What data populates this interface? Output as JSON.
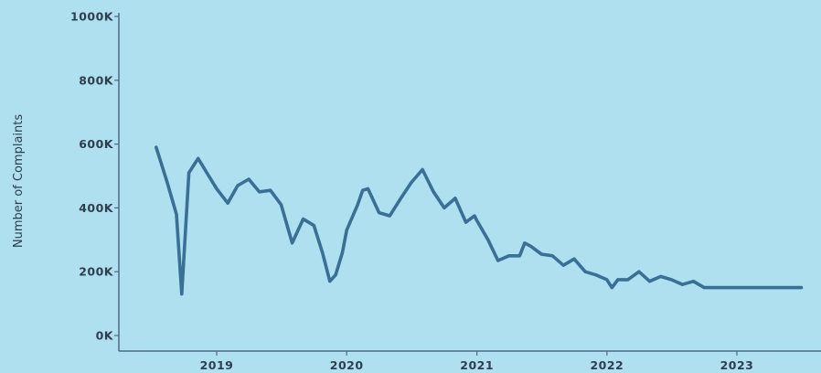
{
  "chart_data": {
    "type": "line",
    "title": "",
    "xlabel": "",
    "ylabel": "Number of Complaints",
    "y_ticks": [
      "0K",
      "200K",
      "400K",
      "600K",
      "800K",
      "1000K"
    ],
    "y_tick_values": [
      0,
      200000,
      400000,
      600000,
      800000,
      1000000
    ],
    "x_ticks": [
      "2019",
      "2020",
      "2021",
      "2022",
      "2023"
    ],
    "x_tick_values": [
      "2019-01-01",
      "2020-01-01",
      "2021-01-01",
      "2022-01-01",
      "2023-01-01"
    ],
    "ylim": [
      0,
      1000000
    ],
    "xlim": [
      "2018-01-15",
      "2023-12-31"
    ],
    "grid": false,
    "colors": {
      "line": "#3a6f96",
      "axis": "#4f6a86",
      "background": "#aee0ef"
    },
    "series": [
      {
        "x": [
          "2018-07-15",
          "2018-08-15",
          "2018-09-10",
          "2018-09-25",
          "2018-10-15",
          "2018-11-10",
          "2018-12-10",
          "2019-01-01",
          "2019-02-01",
          "2019-03-01",
          "2019-04-01",
          "2019-05-01",
          "2019-06-01",
          "2019-07-01",
          "2019-08-01",
          "2019-09-01",
          "2019-10-01",
          "2019-10-25",
          "2019-11-15",
          "2019-12-01",
          "2019-12-20",
          "2020-01-01",
          "2020-02-01",
          "2020-02-15",
          "2020-03-01",
          "2020-04-01",
          "2020-05-01",
          "2020-06-01",
          "2020-07-01",
          "2020-08-01",
          "2020-09-01",
          "2020-10-01",
          "2020-11-01",
          "2020-12-01",
          "2020-12-25",
          "2021-01-01",
          "2021-02-01",
          "2021-03-01",
          "2021-04-01",
          "2021-05-01",
          "2021-05-15",
          "2021-06-01",
          "2021-07-01",
          "2021-08-01",
          "2021-09-01",
          "2021-10-01",
          "2021-11-01",
          "2021-12-01",
          "2022-01-01",
          "2022-01-15",
          "2022-02-01",
          "2022-03-01",
          "2022-04-01",
          "2022-05-01",
          "2022-06-01",
          "2022-07-01",
          "2022-08-01",
          "2022-09-01",
          "2022-10-01",
          "2022-11-01",
          "2022-12-01",
          "2023-01-01",
          "2023-02-01",
          "2023-03-01",
          "2023-04-01",
          "2023-05-01",
          "2023-06-01",
          "2023-07-01"
        ],
        "values": [
          590000,
          480000,
          380000,
          130000,
          510000,
          555000,
          500000,
          460000,
          415000,
          470000,
          490000,
          450000,
          455000,
          410000,
          290000,
          365000,
          345000,
          260000,
          170000,
          190000,
          260000,
          330000,
          410000,
          455000,
          460000,
          385000,
          375000,
          430000,
          480000,
          520000,
          450000,
          400000,
          430000,
          355000,
          375000,
          360000,
          300000,
          235000,
          250000,
          250000,
          290000,
          280000,
          255000,
          250000,
          220000,
          240000,
          200000,
          190000,
          175000,
          150000,
          175000,
          175000,
          200000,
          170000,
          185000,
          175000,
          160000,
          170000,
          150000,
          150000,
          150000,
          150000,
          150000,
          150000,
          150000,
          150000,
          150000,
          150000
        ]
      }
    ]
  }
}
